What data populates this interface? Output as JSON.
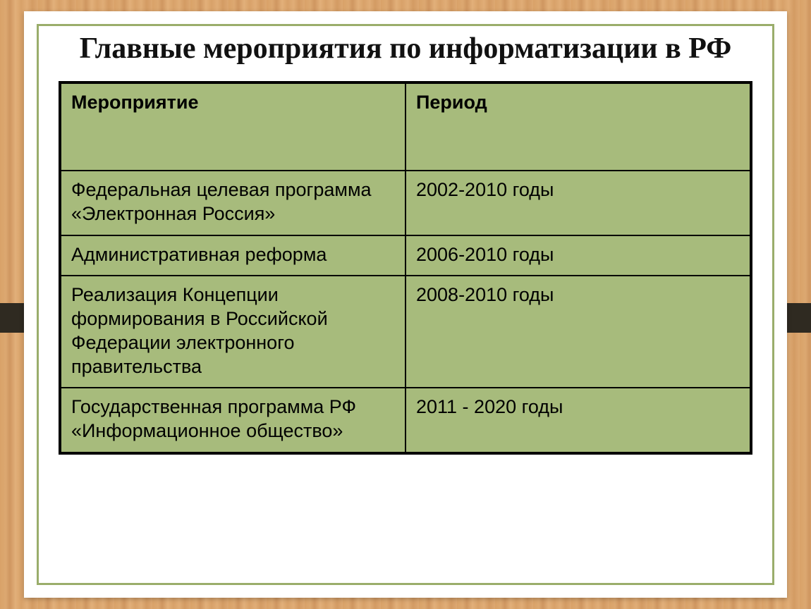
{
  "slide": {
    "title": "Главные мероприятия по информатизации в РФ",
    "background_color": "#ffffff",
    "frame_color": "#9aad6b",
    "wood_band_color": "#2f2a21"
  },
  "table": {
    "header_bg": "#a7bb7c",
    "cell_bg": "#a7bb7c",
    "border_color": "#000000",
    "text_color": "#000000",
    "header_fontsize": 27,
    "cell_fontsize": 27,
    "columns": [
      {
        "key": "event",
        "label": "Мероприятие"
      },
      {
        "key": "period",
        "label": "Период"
      }
    ],
    "rows": [
      {
        "event": "Федеральная целевая программа «Электронная Россия»",
        "period": "2002-2010 годы"
      },
      {
        "event": "Административная реформа",
        "period": "2006-2010 годы"
      },
      {
        "event": "Реализация Концепции формирования в Российской Федерации электронного правительства",
        "period": "2008-2010 годы"
      },
      {
        "event": "Государственная программа РФ «Информационное общество»",
        "period": "2011 - 2020 годы"
      }
    ]
  }
}
